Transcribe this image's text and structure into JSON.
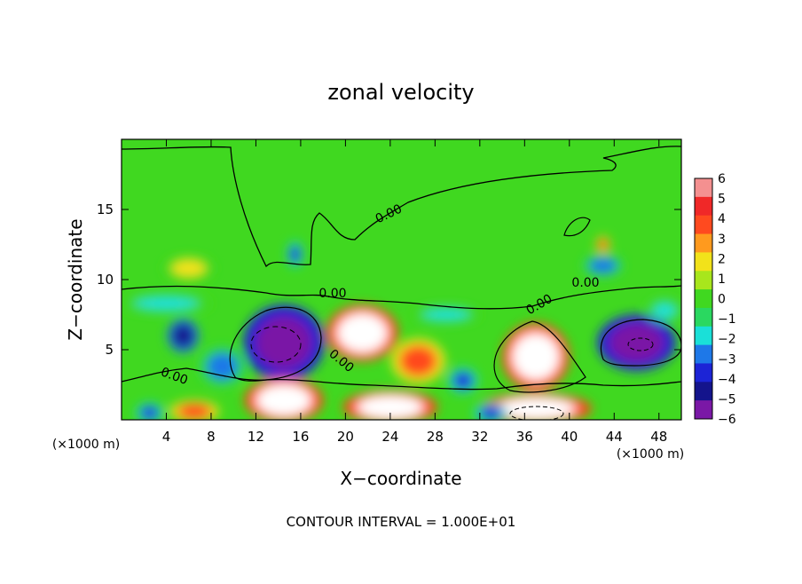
{
  "chart_data": {
    "type": "heatmap",
    "title": "zonal velocity",
    "xlabel": "X−coordinate",
    "ylabel": "Z−coordinate",
    "x_unit_left": "(×1000 m)",
    "x_unit_right": "(×1000 m)",
    "footer": "CONTOUR INTERVAL = 1.000E+01",
    "xlim": [
      0,
      50
    ],
    "ylim": [
      0,
      20
    ],
    "x_ticks": [
      4,
      8,
      12,
      16,
      20,
      24,
      28,
      32,
      36,
      40,
      44,
      48
    ],
    "x_tick_labels": [
      "4",
      "8",
      "12",
      "16",
      "20",
      "24",
      "28",
      "32",
      "36",
      "40",
      "44",
      "48"
    ],
    "y_ticks": [
      5,
      10,
      15
    ],
    "y_tick_labels": [
      "5",
      "10",
      "15"
    ],
    "colorbar": {
      "min": -6,
      "max": 6,
      "labels": [
        "6",
        "5",
        "4",
        "3",
        "2",
        "1",
        "0",
        "−1",
        "−2",
        "−3",
        "−4",
        "−5",
        "−6"
      ],
      "colors": [
        "#f49090",
        "#f02828",
        "#ff4a1f",
        "#ff9a1e",
        "#f2e21a",
        "#a8e61c",
        "#40d820",
        "#2ad860",
        "#1ae0d8",
        "#1e78e8",
        "#1c24d6",
        "#14148c",
        "#7a18a6"
      ]
    },
    "contour_labels": [
      "0.00",
      "0.00",
      "0.00",
      "0.00",
      "0.00",
      "0.00"
    ],
    "background_value": 0.5,
    "features": [
      {
        "x": 14.5,
        "z": 5.5,
        "value": -6,
        "rx": 3.6,
        "rz": 2.7
      },
      {
        "x": 5.5,
        "z": 6.0,
        "value": -5,
        "rx": 1.4,
        "rz": 1.2
      },
      {
        "x": 46,
        "z": 5.5,
        "value": -6,
        "rx": 3.5,
        "rz": 2.0
      },
      {
        "x": 9,
        "z": 3.8,
        "value": -3,
        "rx": 2.0,
        "rz": 1.4
      },
      {
        "x": 21.5,
        "z": 6.2,
        "value": 6,
        "rx": 3.2,
        "rz": 2.0
      },
      {
        "x": 26.5,
        "z": 4.2,
        "value": 4,
        "rx": 2.4,
        "rz": 1.6
      },
      {
        "x": 37,
        "z": 4.5,
        "value": 6,
        "rx": 3.0,
        "rz": 2.4
      },
      {
        "x": 14.5,
        "z": 1.4,
        "value": 6,
        "rx": 3.5,
        "rz": 1.6
      },
      {
        "x": 24,
        "z": 0.9,
        "value": 6,
        "rx": 4.2,
        "rz": 1.2
      },
      {
        "x": 37,
        "z": 0.8,
        "value": 6,
        "rx": 5.0,
        "rz": 1.1
      },
      {
        "x": 6.5,
        "z": 0.6,
        "value": 4,
        "rx": 2.2,
        "rz": 0.8
      },
      {
        "x": 30.5,
        "z": 2.8,
        "value": -4,
        "rx": 1.3,
        "rz": 0.9
      },
      {
        "x": 15.5,
        "z": 11.8,
        "value": -4,
        "rx": 0.7,
        "rz": 0.9
      },
      {
        "x": 43,
        "z": 11.0,
        "value": -3,
        "rx": 1.8,
        "rz": 0.8
      },
      {
        "x": 43,
        "z": 12.5,
        "value": 4,
        "rx": 0.6,
        "rz": 0.6
      },
      {
        "x": 6,
        "z": 10.8,
        "value": 2,
        "rx": 2.2,
        "rz": 0.9
      },
      {
        "x": 4,
        "z": 8.3,
        "value": -2,
        "rx": 4.0,
        "rz": 0.7
      },
      {
        "x": 29,
        "z": 7.5,
        "value": -2,
        "rx": 3.0,
        "rz": 0.6
      },
      {
        "x": 2.5,
        "z": 0.5,
        "value": -4,
        "rx": 1.2,
        "rz": 0.7
      },
      {
        "x": 33,
        "z": 0.5,
        "value": -4,
        "rx": 1.5,
        "rz": 0.7
      },
      {
        "x": 48.5,
        "z": 7.8,
        "value": -2,
        "rx": 1.5,
        "rz": 0.8
      }
    ]
  }
}
